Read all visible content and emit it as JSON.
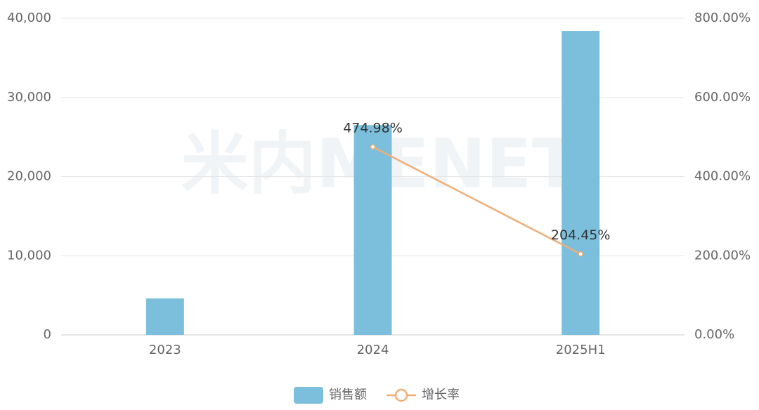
{
  "watermark": "米内MENET",
  "chart_data": {
    "type": "bar",
    "categories": [
      "2023",
      "2024",
      "2025H1"
    ],
    "series": [
      {
        "name": "销售额",
        "type": "bar",
        "color": "#7bbfdc",
        "values": [
          4600,
          26500,
          38400
        ]
      },
      {
        "name": "增长率",
        "type": "line",
        "axis": "y2",
        "color": "#efae76",
        "values": [
          null,
          474.98,
          204.45
        ],
        "value_labels": [
          null,
          "474.98%",
          "204.45%"
        ]
      }
    ],
    "ylim": [
      0,
      40000
    ],
    "yticks": [
      0,
      {
        "value": 10000,
        "label": "10,000"
      },
      {
        "value": 20000,
        "label": "20,000"
      },
      {
        "value": 30000,
        "label": "30,000"
      },
      {
        "value": 40000,
        "label": "40,000"
      }
    ],
    "y2lim": [
      0,
      800
    ],
    "y2ticks": [
      {
        "value": 0,
        "label": "0.00%"
      },
      {
        "value": 200,
        "label": "200.00%"
      },
      {
        "value": 400,
        "label": "400.00%"
      },
      {
        "value": 600,
        "label": "600.00%"
      },
      {
        "value": 800,
        "label": "800.00%"
      }
    ],
    "grid": true,
    "legend": "bottom"
  }
}
